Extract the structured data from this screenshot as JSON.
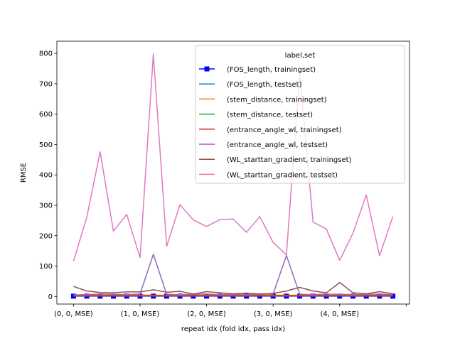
{
  "chart_data": {
    "type": "line",
    "xlabel": "repeat idx (fold idx, pass idx)",
    "ylabel": "RMSE",
    "ylim": [
      -25,
      840
    ],
    "yticks": [
      0,
      100,
      200,
      300,
      400,
      500,
      600,
      700,
      800
    ],
    "ytick_labels": [
      "0",
      "100",
      "200",
      "300",
      "400",
      "500",
      "600",
      "700",
      "800"
    ],
    "xlim": [
      -1.25,
      25.25
    ],
    "xticks": [
      0,
      5,
      10,
      15,
      20,
      25
    ],
    "xtick_labels": [
      "(0, 0, MSE)",
      "(1, 0, MSE)",
      "(2, 0, MSE)",
      "(3, 0, MSE)",
      "(4, 0, MSE)",
      ""
    ],
    "x": [
      0,
      1,
      2,
      3,
      4,
      5,
      6,
      7,
      8,
      9,
      10,
      11,
      12,
      13,
      14,
      15,
      16,
      17,
      18,
      19,
      20,
      21,
      22,
      23,
      24
    ],
    "legend_title": "label,set",
    "legend_location": "upper-right",
    "grid": false,
    "series": [
      {
        "name": "(FOS_length, trainingset)",
        "color": "#0000ff",
        "marker": "square",
        "values": [
          1,
          1,
          1,
          1,
          1,
          1,
          1,
          1,
          1,
          1,
          1,
          1,
          1,
          1,
          1,
          1,
          1,
          1,
          1,
          1,
          1,
          1,
          1,
          1,
          1
        ]
      },
      {
        "name": "(FOS_length, testset)",
        "color": "#1f77b4",
        "values": [
          3,
          3,
          3,
          3,
          3,
          3,
          3,
          3,
          3,
          3,
          3,
          3,
          3,
          3,
          3,
          3,
          3,
          3,
          3,
          3,
          3,
          3,
          3,
          3,
          3
        ]
      },
      {
        "name": "(stem_distance, trainingset)",
        "color": "#ff7f0e",
        "values": [
          2,
          2,
          2,
          2,
          2,
          2,
          2,
          2,
          2,
          2,
          2,
          2,
          2,
          2,
          2,
          2,
          2,
          2,
          2,
          2,
          2,
          2,
          2,
          2,
          2
        ]
      },
      {
        "name": "(stem_distance, testset)",
        "color": "#2ca02c",
        "values": [
          4,
          4,
          4,
          4,
          4,
          4,
          4,
          4,
          4,
          4,
          4,
          4,
          4,
          4,
          4,
          4,
          4,
          4,
          4,
          4,
          4,
          4,
          4,
          4,
          4
        ]
      },
      {
        "name": "(entrance_angle_wl, trainingset)",
        "color": "#d62728",
        "values": [
          3,
          3,
          4,
          3,
          3,
          4,
          4,
          3,
          4,
          3,
          4,
          3,
          4,
          3,
          3,
          4,
          4,
          3,
          4,
          3,
          3,
          4,
          3,
          3,
          3
        ]
      },
      {
        "name": "(entrance_angle_wl, testset)",
        "color": "#9467bd",
        "values": [
          5,
          6,
          8,
          7,
          6,
          8,
          139,
          7,
          6,
          7,
          8,
          6,
          7,
          6,
          7,
          8,
          135,
          7,
          6,
          8,
          7,
          6,
          7,
          8,
          6
        ]
      },
      {
        "name": "(WL_starttan_gradient, trainingset)",
        "color": "#8c564b",
        "values": [
          33,
          18,
          13,
          12,
          15,
          15,
          22,
          14,
          17,
          8,
          16,
          12,
          9,
          11,
          8,
          10,
          18,
          30,
          18,
          12,
          46,
          12,
          9,
          16,
          9
        ]
      },
      {
        "name": "(WL_starttan_gradient, testset)",
        "color": "#e377c2",
        "values": [
          116,
          261,
          476,
          215,
          270,
          128,
          798,
          165,
          302,
          252,
          230,
          253,
          255,
          211,
          263,
          178,
          137,
          738,
          245,
          222,
          119,
          208,
          334,
          134,
          263
        ]
      }
    ]
  }
}
